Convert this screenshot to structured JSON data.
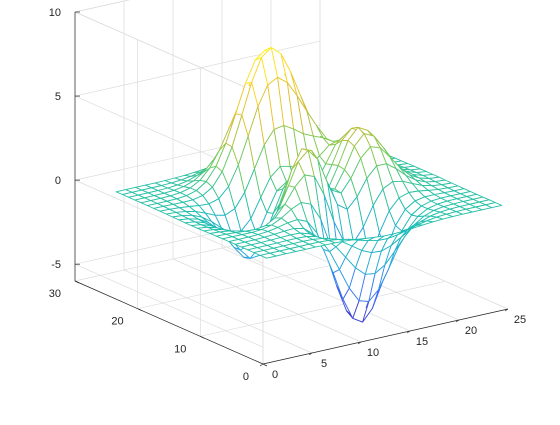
{
  "chart_data": {
    "type": "surface",
    "title": "",
    "xlabel": "",
    "ylabel": "",
    "zlabel": "",
    "xlim": [
      0,
      25
    ],
    "ylim": [
      0,
      30
    ],
    "zlim": [
      -6,
      10
    ],
    "x_ticks": [
      "0",
      "5",
      "10",
      "15",
      "20",
      "25"
    ],
    "y_ticks": [
      "0",
      "10",
      "20",
      "30"
    ],
    "z_ticks": [
      "-5",
      "0",
      "5",
      "10"
    ],
    "grid": true,
    "colormap": "parula",
    "surface_kind": "mesh",
    "grid_size": 25,
    "function": "MATLAB peaks",
    "z_range": [
      -6.55,
      8.1
    ]
  },
  "colors": {
    "axis": "#262626",
    "grid": "#dcdcdc",
    "background": "#ffffff",
    "colormap_stops": [
      "#3e26a8",
      "#4367fd",
      "#2aa9df",
      "#1dbeb1",
      "#70cc5b",
      "#dbba31",
      "#fcd42e",
      "#f9fb15"
    ]
  }
}
